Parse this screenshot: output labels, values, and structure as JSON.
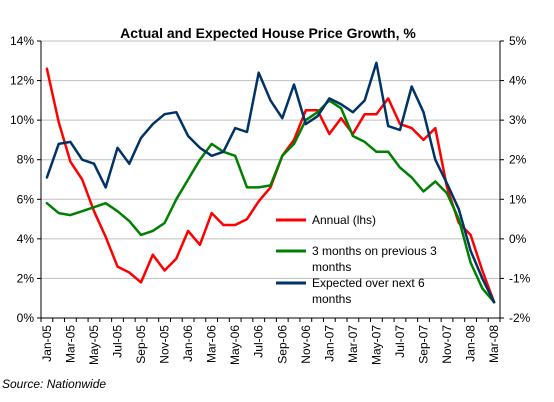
{
  "chart_data": {
    "type": "line",
    "title": "Actual and Expected House Price Growth, %",
    "source": "Source: Nationwide",
    "categories": [
      "Jan-05",
      "Feb-05",
      "Mar-05",
      "Apr-05",
      "May-05",
      "Jun-05",
      "Jul-05",
      "Aug-05",
      "Sep-05",
      "Oct-05",
      "Nov-05",
      "Dec-05",
      "Jan-06",
      "Feb-06",
      "Mar-06",
      "Apr-06",
      "May-06",
      "Jun-06",
      "Jul-06",
      "Aug-06",
      "Sep-06",
      "Oct-06",
      "Nov-06",
      "Dec-06",
      "Jan-07",
      "Feb-07",
      "Mar-07",
      "Apr-07",
      "May-07",
      "Jun-07",
      "Jul-07",
      "Aug-07",
      "Sep-07",
      "Oct-07",
      "Nov-07",
      "Dec-07",
      "Jan-08",
      "Feb-08",
      "Mar-08"
    ],
    "x_tick_labels": [
      "Jan-05",
      "Mar-05",
      "May-05",
      "Jul-05",
      "Sep-05",
      "Nov-05",
      "Jan-06",
      "Mar-06",
      "May-06",
      "Jul-06",
      "Sep-06",
      "Nov-06",
      "Jan-07",
      "Mar-07",
      "May-07",
      "Jul-07",
      "Sep-07",
      "Nov-07",
      "Jan-08",
      "Mar-08"
    ],
    "left_axis": {
      "ylim": [
        0,
        14
      ],
      "ticks": [
        "0%",
        "2%",
        "4%",
        "6%",
        "8%",
        "10%",
        "12%",
        "14%"
      ]
    },
    "right_axis": {
      "ylim": [
        -2,
        5
      ],
      "ticks": [
        "-2%",
        "-1%",
        "0%",
        "1%",
        "2%",
        "3%",
        "4%",
        "5%"
      ]
    },
    "series": [
      {
        "name": "Annual (lhs)",
        "axis": "left",
        "color": "#ff0000",
        "values": [
          12.6,
          9.9,
          7.9,
          7.0,
          5.4,
          4.1,
          2.6,
          2.3,
          1.8,
          3.2,
          2.4,
          3.0,
          4.4,
          3.7,
          5.3,
          4.7,
          4.7,
          5.0,
          5.9,
          6.6,
          8.2,
          9.0,
          10.5,
          10.5,
          9.3,
          10.1,
          9.3,
          10.3,
          10.3,
          11.1,
          9.8,
          9.6,
          9.0,
          9.6,
          6.6,
          4.8,
          4.2,
          2.4,
          0.8
        ]
      },
      {
        "name": "3 months on previous 3 months",
        "axis": "right",
        "color": "#008000",
        "values": [
          0.9,
          0.65,
          0.6,
          0.7,
          0.8,
          0.9,
          0.7,
          0.45,
          0.1,
          0.2,
          0.4,
          1.0,
          1.5,
          2.0,
          2.4,
          2.2,
          2.1,
          1.3,
          1.3,
          1.35,
          2.1,
          2.4,
          3.0,
          3.2,
          3.5,
          3.3,
          2.6,
          2.45,
          2.2,
          2.2,
          1.8,
          1.55,
          1.2,
          1.45,
          1.15,
          0.5,
          -0.6,
          -1.25,
          -1.6
        ]
      },
      {
        "name": "Expected over next 6 months",
        "axis": "right",
        "color": "#003366",
        "values": [
          1.55,
          2.4,
          2.45,
          2.0,
          1.9,
          1.3,
          2.3,
          1.9,
          2.55,
          2.9,
          3.15,
          3.2,
          2.6,
          2.3,
          2.1,
          2.2,
          2.8,
          2.7,
          4.2,
          3.5,
          3.05,
          3.9,
          2.9,
          3.1,
          3.55,
          3.4,
          3.2,
          3.5,
          4.45,
          2.85,
          2.75,
          3.85,
          3.2,
          2.0,
          1.4,
          0.75,
          -0.3,
          -1.0,
          -1.6
        ]
      }
    ]
  }
}
